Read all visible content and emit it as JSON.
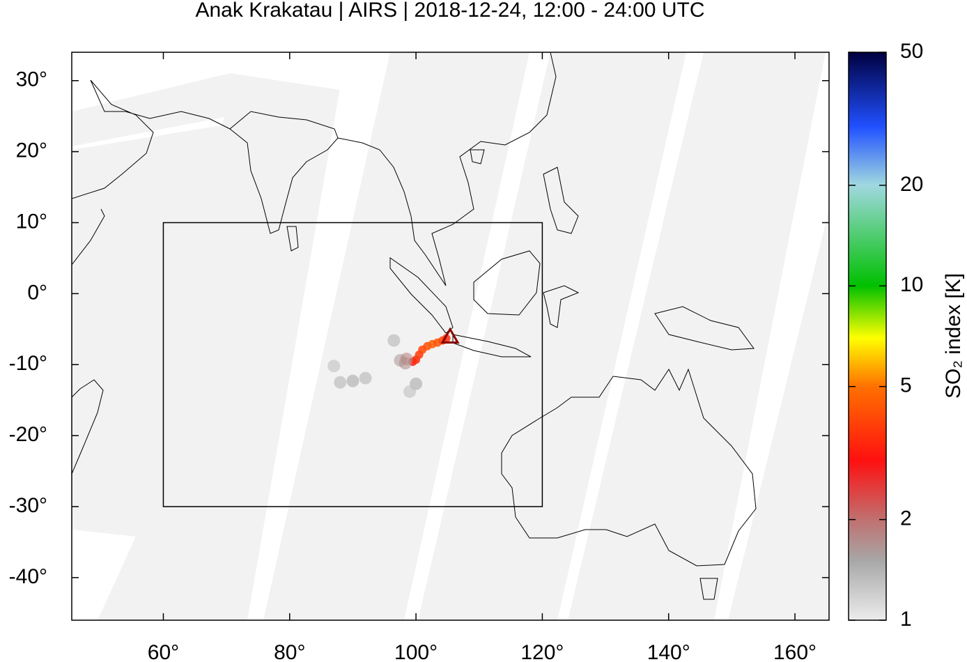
{
  "chart_data": {
    "type": "map",
    "title": "Anak Krakatau | AIRS | 2018-12-24, 12:00 - 24:00 UTC",
    "xlim": [
      45.5,
      165.4
    ],
    "ylim": [
      -46,
      34
    ],
    "xticks": [
      {
        "value": 60,
        "label": "60°"
      },
      {
        "value": 80,
        "label": "80°"
      },
      {
        "value": 100,
        "label": "100°"
      },
      {
        "value": 120,
        "label": "120°"
      },
      {
        "value": 140,
        "label": "140°"
      },
      {
        "value": 160,
        "label": "160°"
      }
    ],
    "yticks": [
      {
        "value": 30,
        "label": "30°"
      },
      {
        "value": 20,
        "label": "20°"
      },
      {
        "value": 10,
        "label": "10°"
      },
      {
        "value": 0,
        "label": "0°"
      },
      {
        "value": -10,
        "label": "-10°"
      },
      {
        "value": -20,
        "label": "-20°"
      },
      {
        "value": -30,
        "label": "-30°"
      },
      {
        "value": -40,
        "label": "-40°"
      }
    ],
    "box": {
      "lon": [
        60,
        120
      ],
      "lat": [
        -30,
        10
      ]
    },
    "volcano": {
      "lon": 105.4,
      "lat": -6.1
    },
    "plume": {
      "lon": [
        99.5,
        100,
        100.5,
        101,
        101.8,
        102.6,
        103.4,
        104.2,
        104.8,
        97.5,
        98.5,
        96.5,
        88,
        90,
        92,
        87,
        100,
        99,
        98.3
      ],
      "lat": [
        -9.6,
        -9.3,
        -8.6,
        -7.9,
        -7.4,
        -7.1,
        -6.9,
        -6.6,
        -6.3,
        -9.4,
        -9.2,
        -6.6,
        -12.5,
        -12.3,
        -11.9,
        -10.2,
        -12.7,
        -13.8,
        -9.8
      ],
      "so2": [
        3.2,
        3.5,
        3.8,
        4,
        4.2,
        4.5,
        4.3,
        4,
        3.6,
        1.6,
        1.8,
        1.4,
        1.4,
        1.5,
        1.4,
        1.3,
        1.5,
        1.3,
        1.7
      ]
    },
    "colorbar": {
      "label": "SO₂ index [K]",
      "lim": [
        1,
        50
      ],
      "scale": "log",
      "ticks": [
        1,
        2,
        5,
        10,
        20,
        50
      ]
    }
  }
}
